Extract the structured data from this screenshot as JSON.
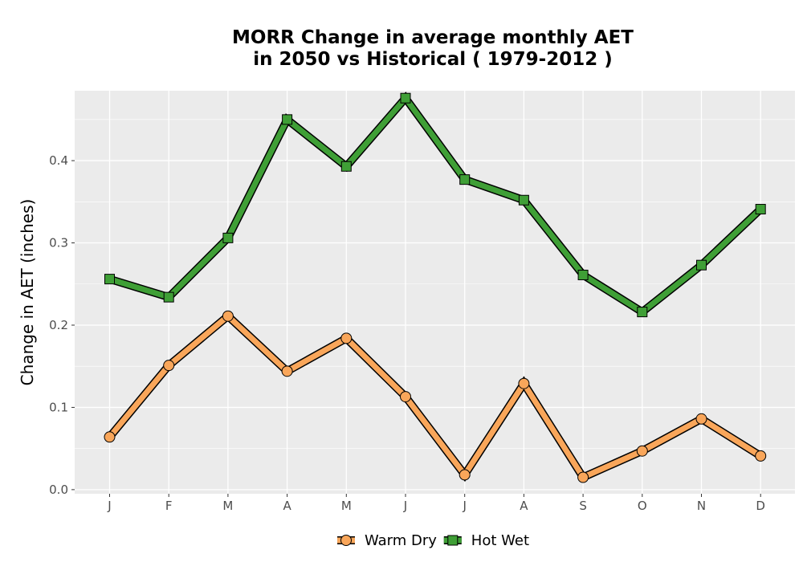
{
  "chart_data": {
    "type": "line",
    "title_lines": [
      "MORR  Change in average monthly AET",
      "in 2050 vs Historical ( 1979-2012 )"
    ],
    "ylabel": "Change in AET (inches)",
    "xlabel": "",
    "categories": [
      "J",
      "F",
      "M",
      "A",
      "M",
      "J",
      "J",
      "A",
      "S",
      "O",
      "N",
      "D"
    ],
    "y_ticks": [
      0.0,
      0.1,
      0.2,
      0.3,
      0.4
    ],
    "y_tick_labels": [
      "0.0",
      "0.1",
      "0.2",
      "0.3",
      "0.4"
    ],
    "ylim": [
      -0.005,
      0.485
    ],
    "grid": true,
    "legend_position": "bottom",
    "series": [
      {
        "name": "Warm Dry",
        "color": "#F9A65A",
        "marker": "circle",
        "values": [
          0.064,
          0.151,
          0.211,
          0.144,
          0.184,
          0.113,
          0.018,
          0.129,
          0.015,
          0.047,
          0.086,
          0.041
        ]
      },
      {
        "name": "Hot Wet",
        "color": "#3F9F36",
        "marker": "square",
        "values": [
          0.256,
          0.234,
          0.306,
          0.45,
          0.393,
          0.476,
          0.377,
          0.352,
          0.261,
          0.216,
          0.273,
          0.341
        ]
      }
    ]
  }
}
